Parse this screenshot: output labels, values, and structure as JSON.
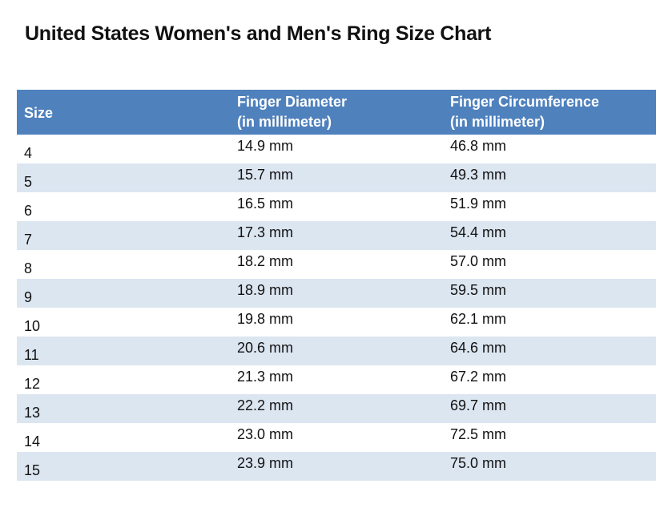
{
  "title": "United States Women's and Men's Ring Size Chart",
  "colors": {
    "header_bg": "#4F81BD",
    "header_text": "#FFFFFF",
    "stripe": "#DCE6F1"
  },
  "table": {
    "headers": [
      {
        "line1": "Size",
        "line2": ""
      },
      {
        "line1": "Finger Diameter",
        "line2": "(in millimeter)"
      },
      {
        "line1": "Finger Circumference",
        "line2": "(in millimeter)"
      }
    ],
    "rows": [
      {
        "size": "4",
        "diameter": "14.9 mm",
        "circumference": "46.8 mm"
      },
      {
        "size": "5",
        "diameter": "15.7 mm",
        "circumference": "49.3 mm"
      },
      {
        "size": "6",
        "diameter": "16.5 mm",
        "circumference": "51.9 mm"
      },
      {
        "size": "7",
        "diameter": "17.3 mm",
        "circumference": "54.4 mm"
      },
      {
        "size": "8",
        "diameter": "18.2 mm",
        "circumference": "57.0 mm"
      },
      {
        "size": "9",
        "diameter": "18.9 mm",
        "circumference": "59.5 mm"
      },
      {
        "size": "10",
        "diameter": "19.8 mm",
        "circumference": "62.1 mm"
      },
      {
        "size": "11",
        "diameter": "20.6 mm",
        "circumference": "64.6 mm"
      },
      {
        "size": "12",
        "diameter": "21.3 mm",
        "circumference": "67.2 mm"
      },
      {
        "size": "13",
        "diameter": "22.2 mm",
        "circumference": "69.7 mm"
      },
      {
        "size": "14",
        "diameter": "23.0 mm",
        "circumference": "72.5 mm"
      },
      {
        "size": "15",
        "diameter": "23.9 mm",
        "circumference": "75.0 mm"
      }
    ]
  }
}
